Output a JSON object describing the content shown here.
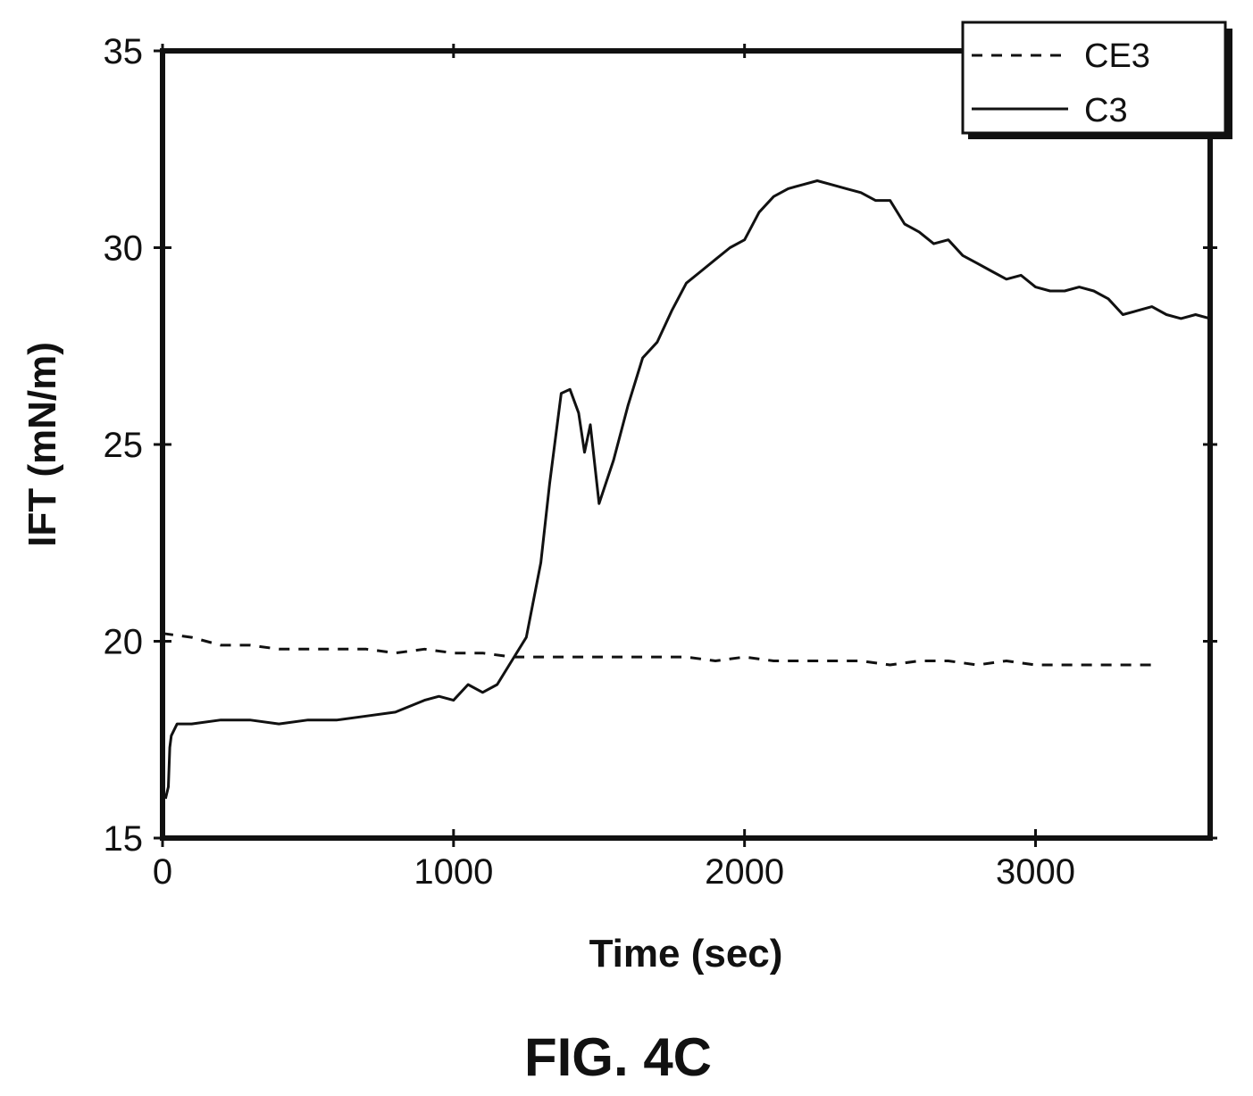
{
  "chart_data": {
    "type": "line",
    "xlabel": "Time (sec)",
    "ylabel": "IFT (mN/m)",
    "caption": "FIG. 4C",
    "xlim": [
      0,
      3600
    ],
    "ylim": [
      15,
      35
    ],
    "xticks": [
      0,
      1000,
      2000,
      3000
    ],
    "yticks": [
      15,
      20,
      25,
      30,
      35
    ],
    "grid": false,
    "legend_position": "top-right",
    "series": [
      {
        "name": "CE3",
        "style": "dashed",
        "color": "#111111",
        "points": [
          [
            0,
            20.2
          ],
          [
            100,
            20.1
          ],
          [
            200,
            19.9
          ],
          [
            300,
            19.9
          ],
          [
            400,
            19.8
          ],
          [
            500,
            19.8
          ],
          [
            600,
            19.8
          ],
          [
            700,
            19.8
          ],
          [
            800,
            19.7
          ],
          [
            900,
            19.8
          ],
          [
            1000,
            19.7
          ],
          [
            1100,
            19.7
          ],
          [
            1200,
            19.6
          ],
          [
            1300,
            19.6
          ],
          [
            1400,
            19.6
          ],
          [
            1500,
            19.6
          ],
          [
            1600,
            19.6
          ],
          [
            1700,
            19.6
          ],
          [
            1800,
            19.6
          ],
          [
            1900,
            19.5
          ],
          [
            2000,
            19.6
          ],
          [
            2100,
            19.5
          ],
          [
            2200,
            19.5
          ],
          [
            2300,
            19.5
          ],
          [
            2400,
            19.5
          ],
          [
            2500,
            19.4
          ],
          [
            2600,
            19.5
          ],
          [
            2700,
            19.5
          ],
          [
            2800,
            19.4
          ],
          [
            2900,
            19.5
          ],
          [
            3000,
            19.4
          ],
          [
            3100,
            19.4
          ],
          [
            3200,
            19.4
          ],
          [
            3300,
            19.4
          ],
          [
            3400,
            19.4
          ]
        ]
      },
      {
        "name": "C3",
        "style": "solid",
        "color": "#111111",
        "points": [
          [
            10,
            16.0
          ],
          [
            20,
            16.3
          ],
          [
            25,
            17.3
          ],
          [
            30,
            17.6
          ],
          [
            50,
            17.9
          ],
          [
            100,
            17.9
          ],
          [
            200,
            18.0
          ],
          [
            300,
            18.0
          ],
          [
            400,
            17.9
          ],
          [
            500,
            18.0
          ],
          [
            600,
            18.0
          ],
          [
            700,
            18.1
          ],
          [
            800,
            18.2
          ],
          [
            900,
            18.5
          ],
          [
            950,
            18.6
          ],
          [
            1000,
            18.5
          ],
          [
            1050,
            18.9
          ],
          [
            1100,
            18.7
          ],
          [
            1150,
            18.9
          ],
          [
            1200,
            19.5
          ],
          [
            1250,
            20.1
          ],
          [
            1300,
            22.0
          ],
          [
            1330,
            24.0
          ],
          [
            1370,
            26.3
          ],
          [
            1400,
            26.4
          ],
          [
            1430,
            25.8
          ],
          [
            1450,
            24.8
          ],
          [
            1470,
            25.5
          ],
          [
            1500,
            23.5
          ],
          [
            1550,
            24.6
          ],
          [
            1600,
            26.0
          ],
          [
            1650,
            27.2
          ],
          [
            1700,
            27.6
          ],
          [
            1750,
            28.4
          ],
          [
            1800,
            29.1
          ],
          [
            1850,
            29.4
          ],
          [
            1900,
            29.7
          ],
          [
            1950,
            30.0
          ],
          [
            2000,
            30.2
          ],
          [
            2050,
            30.9
          ],
          [
            2100,
            31.3
          ],
          [
            2150,
            31.5
          ],
          [
            2200,
            31.6
          ],
          [
            2250,
            31.7
          ],
          [
            2300,
            31.6
          ],
          [
            2350,
            31.5
          ],
          [
            2400,
            31.4
          ],
          [
            2450,
            31.2
          ],
          [
            2500,
            31.2
          ],
          [
            2550,
            30.6
          ],
          [
            2600,
            30.4
          ],
          [
            2650,
            30.1
          ],
          [
            2700,
            30.2
          ],
          [
            2750,
            29.8
          ],
          [
            2800,
            29.6
          ],
          [
            2850,
            29.4
          ],
          [
            2900,
            29.2
          ],
          [
            2950,
            29.3
          ],
          [
            3000,
            29.0
          ],
          [
            3050,
            28.9
          ],
          [
            3100,
            28.9
          ],
          [
            3150,
            29.0
          ],
          [
            3200,
            28.9
          ],
          [
            3250,
            28.7
          ],
          [
            3300,
            28.3
          ],
          [
            3350,
            28.4
          ],
          [
            3400,
            28.5
          ],
          [
            3450,
            28.3
          ],
          [
            3500,
            28.2
          ],
          [
            3550,
            28.3
          ],
          [
            3600,
            28.2
          ]
        ]
      }
    ]
  }
}
